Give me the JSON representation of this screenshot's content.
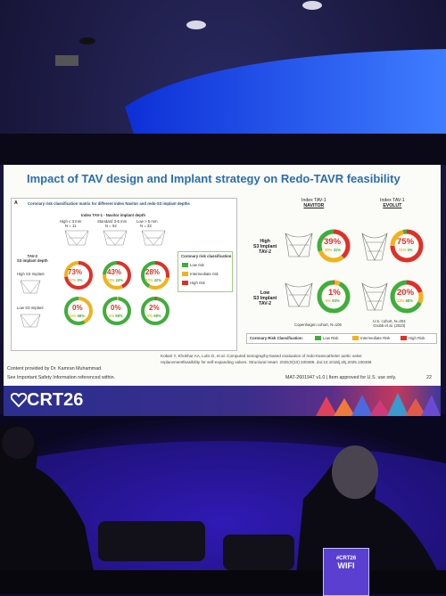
{
  "slide": {
    "title": "Impact of TAV design and Implant strategy on Redo-TAVR feasibility",
    "panel_a_letter": "A",
    "panel_a_title": "Coronary risk classification matrix for different index Navitor and redo-S3 implant depths",
    "col_group_label": "Index TAV-1 - Navitor implant depth",
    "col_headers": [
      {
        "label": "High ≤ 3 mm",
        "n": "N = 11"
      },
      {
        "label": "Standard 3-5 mm",
        "n": "N = 62"
      },
      {
        "label": "Low > 5 mm",
        "n": "N = 33"
      }
    ],
    "row_group_label": "TAV-2\nS3 implant depth",
    "row_headers": [
      "High S3 Implant",
      "Low S3 Implant"
    ],
    "matrix": [
      [
        {
          "main": "73%",
          "sub": "27%",
          "sub2": "0%"
        },
        {
          "main": "43%",
          "sub": "33%",
          "sub2": "24%"
        },
        {
          "main": "28%",
          "sub": "30%",
          "sub2": "42%"
        }
      ],
      [
        {
          "main": "0%",
          "sub": "42%",
          "sub2": "58%"
        },
        {
          "main": "0%",
          "sub": "2%",
          "sub2": "98%"
        },
        {
          "main": "2%",
          "sub": "0%",
          "sub2": "98%"
        }
      ]
    ],
    "legend_title": "Coronary risk classification",
    "legend_items": [
      {
        "label": "Low risk",
        "color": "#3fae3a"
      },
      {
        "label": "Intermediate risk",
        "color": "#f2b21c"
      },
      {
        "label": "High risk",
        "color": "#e03027"
      }
    ],
    "right": {
      "col1_title": "Index TAV-1",
      "col1_name": "NAVITOR",
      "col2_title": "Index TAV-1",
      "col2_name": "EVOLUT",
      "row1_label": "High\nS3 Implant\nTAV-2",
      "row2_label": "Low\nS3 Implant\nTAV-2",
      "cells": [
        {
          "main": "39%",
          "sub": "30%",
          "sub2": "31%"
        },
        {
          "main": "75%",
          "sub": "21%",
          "sub2": "4%"
        },
        {
          "main": "1%",
          "sub": "6%",
          "sub2": "93%"
        },
        {
          "main": "20%",
          "sub": "12%",
          "sub2": "68%"
        }
      ],
      "cohort1": "Copenhagen cohort, N=106",
      "cohort2_line1": "U.S. cohort, N=204",
      "cohort2_line2": "Grubb et al. (2023)",
      "legend_title": "Coronary Risk Classification:",
      "legend_items": [
        "Low Risk",
        "Intermediate Risk",
        "High Risk"
      ]
    },
    "citation_line1": "Kobari Y, Khokhar AA, Lulic D, et al. Computed tomography-based evaluation of redo-transcatheter aortic valve",
    "citation_line2": "replacementfeasibility for self-expanding valves. Structural Heart. 2025;9(10):100486. doi:10.1016/j.shj.2025.100486",
    "content_note": "Content provided by Dr. Kamran Muhammad.",
    "safety_note": "See Important Safety Information referenced within.",
    "mat_code": "MAT-2601947 v1.0 | Item approved for U.S. use only.",
    "page_number": "22",
    "brand": "CRT26"
  },
  "sign": {
    "line1": "#CRT26",
    "line2": "WIFI"
  },
  "colors": {
    "low": "#3fae3a",
    "intermediate": "#f2b21c",
    "high": "#e03027",
    "title_blue": "#2a6db3"
  }
}
